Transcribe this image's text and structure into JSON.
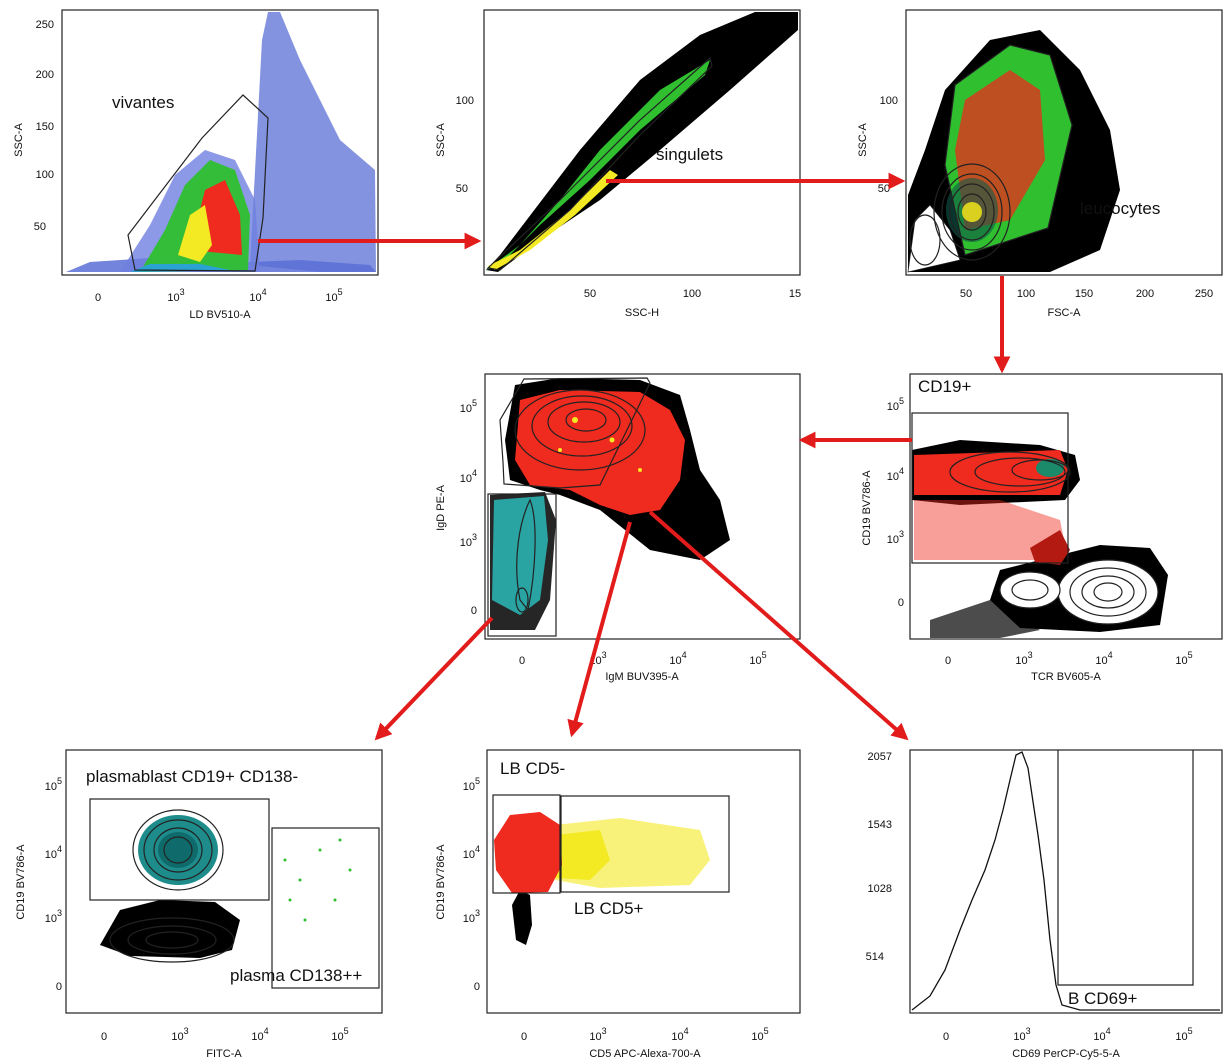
{
  "figure": {
    "panels": [
      {
        "id": "ld",
        "y_label": "SSC-A",
        "x_label": "LD BV510-A",
        "y_ticks": [
          "250",
          "200",
          "150",
          "100",
          "50"
        ],
        "x_ticks": [
          {
            "base": "0",
            "exp": ""
          },
          {
            "base": "10",
            "exp": "3"
          },
          {
            "base": "10",
            "exp": "4"
          },
          {
            "base": "10",
            "exp": "5"
          }
        ],
        "gate_label": "vivantes"
      },
      {
        "id": "singlets",
        "y_label": "SSC-A",
        "x_label": "SSC-H",
        "y_ticks": [
          "100",
          "50"
        ],
        "x_ticks": [
          {
            "base": "50",
            "exp": ""
          },
          {
            "base": "100",
            "exp": ""
          },
          {
            "base": "15",
            "exp": ""
          }
        ],
        "gate_label": "singulets"
      },
      {
        "id": "leuco",
        "y_label": "SSC-A",
        "x_label": "FSC-A",
        "y_ticks": [
          "100",
          "50"
        ],
        "x_ticks": [
          {
            "base": "50",
            "exp": ""
          },
          {
            "base": "100",
            "exp": ""
          },
          {
            "base": "150",
            "exp": ""
          },
          {
            "base": "200",
            "exp": ""
          },
          {
            "base": "250",
            "exp": ""
          }
        ],
        "gate_label": "leucocytes"
      },
      {
        "id": "cd19",
        "y_label": "CD19 BV786-A",
        "x_label": "TCR BV605-A",
        "y_ticks": [
          {
            "base": "10",
            "exp": "5"
          },
          {
            "base": "10",
            "exp": "4"
          },
          {
            "base": "10",
            "exp": "3"
          },
          {
            "base": "0",
            "exp": ""
          }
        ],
        "x_ticks": [
          {
            "base": "0",
            "exp": ""
          },
          {
            "base": "10",
            "exp": "3"
          },
          {
            "base": "10",
            "exp": "4"
          },
          {
            "base": "10",
            "exp": "5"
          }
        ],
        "gate_label": "CD19+"
      },
      {
        "id": "igd",
        "y_label": "IgD PE-A",
        "x_label": "IgM BUV395-A",
        "y_ticks": [
          {
            "base": "10",
            "exp": "5"
          },
          {
            "base": "10",
            "exp": "4"
          },
          {
            "base": "10",
            "exp": "3"
          },
          {
            "base": "0",
            "exp": ""
          }
        ],
        "x_ticks": [
          {
            "base": "0",
            "exp": ""
          },
          {
            "base": "10",
            "exp": "3"
          },
          {
            "base": "10",
            "exp": "4"
          },
          {
            "base": "10",
            "exp": "5"
          }
        ]
      },
      {
        "id": "plasma",
        "y_label": "CD19 BV786-A",
        "x_label": "FITC-A",
        "y_ticks": [
          {
            "base": "10",
            "exp": "5"
          },
          {
            "base": "10",
            "exp": "4"
          },
          {
            "base": "10",
            "exp": "3"
          },
          {
            "base": "0",
            "exp": ""
          }
        ],
        "x_ticks": [
          {
            "base": "0",
            "exp": ""
          },
          {
            "base": "10",
            "exp": "3"
          },
          {
            "base": "10",
            "exp": "4"
          },
          {
            "base": "10",
            "exp": "5"
          }
        ],
        "gate_label_1": "plasmablast CD19+ CD138-",
        "gate_label_2": "plasma CD138++"
      },
      {
        "id": "cd5",
        "y_label": "CD19 BV786-A",
        "x_label": "CD5 APC-Alexa-700-A",
        "y_ticks": [
          {
            "base": "10",
            "exp": "5"
          },
          {
            "base": "10",
            "exp": "4"
          },
          {
            "base": "10",
            "exp": "3"
          },
          {
            "base": "0",
            "exp": ""
          }
        ],
        "x_ticks": [
          {
            "base": "0",
            "exp": ""
          },
          {
            "base": "10",
            "exp": "3"
          },
          {
            "base": "10",
            "exp": "4"
          },
          {
            "base": "10",
            "exp": "5"
          }
        ],
        "gate_label_1": "LB CD5-",
        "gate_label_2": "LB CD5+"
      },
      {
        "id": "cd69",
        "y_label": "",
        "x_label": "CD69 PerCP-Cy5-5-A",
        "y_ticks": [
          "2057",
          "1543",
          "1028",
          "514"
        ],
        "x_ticks": [
          {
            "base": "0",
            "exp": ""
          },
          {
            "base": "10",
            "exp": "3"
          },
          {
            "base": "10",
            "exp": "4"
          },
          {
            "base": "10",
            "exp": "5"
          }
        ],
        "gate_label": "B CD69+"
      }
    ],
    "colors": {
      "arrow": "#e21b1b",
      "blue_events": "#5a6fd6",
      "black_events": "#000000",
      "green_events": "#2fbf2f",
      "red_events": "#ef2a1e",
      "yellow_events": "#f3ea23",
      "cyan_events": "#2aa3a3",
      "teal_events": "#23908f"
    },
    "icons": [
      "flow-direction-arrow-icon"
    ]
  }
}
